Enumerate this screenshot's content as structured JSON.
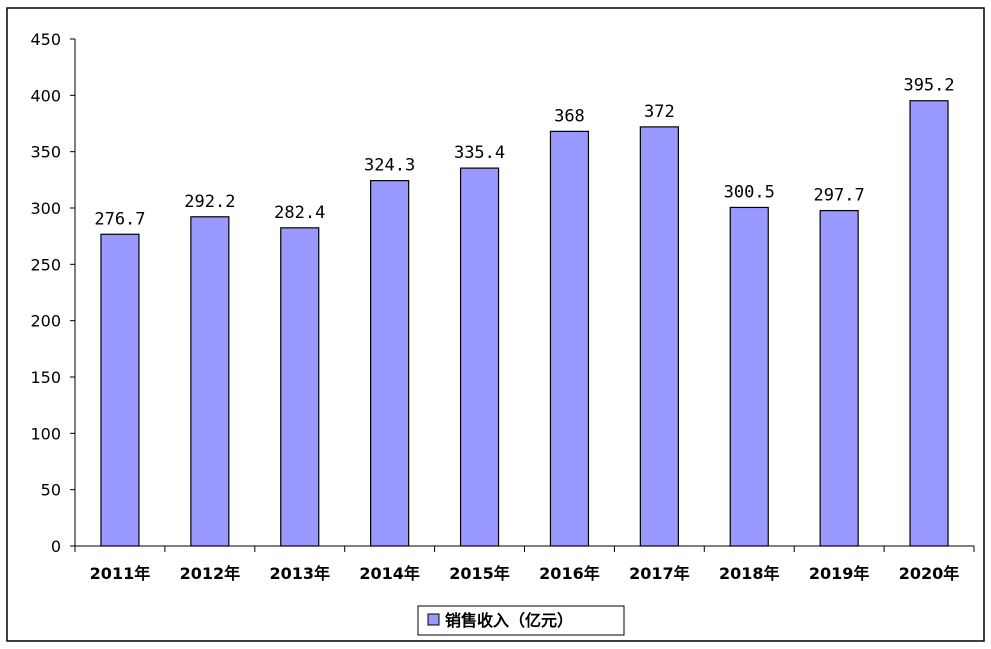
{
  "chart_data": {
    "type": "bar",
    "categories": [
      "2011年",
      "2012年",
      "2013年",
      "2014年",
      "2015年",
      "2016年",
      "2017年",
      "2018年",
      "2019年",
      "2020年"
    ],
    "series": [
      {
        "name": "销售收入（亿元）",
        "values": [
          276.7,
          292.2,
          282.4,
          324.3,
          335.4,
          368,
          372,
          300.5,
          297.7,
          395.2
        ],
        "labels": [
          "276.7",
          "292.2",
          "282.4",
          "324.3",
          "335.4",
          "368",
          "372",
          "300.5",
          "297.7",
          "395.2"
        ]
      }
    ],
    "title": "",
    "xlabel": "",
    "ylabel": "",
    "ylim": [
      0,
      450
    ],
    "yticks": [
      0,
      50,
      100,
      150,
      200,
      250,
      300,
      350,
      400,
      450
    ],
    "grid": false,
    "legend_position": "bottom-center",
    "colors": {
      "bar_fill": "#9999ff",
      "bar_stroke": "#000000",
      "axis": "#000000"
    }
  }
}
